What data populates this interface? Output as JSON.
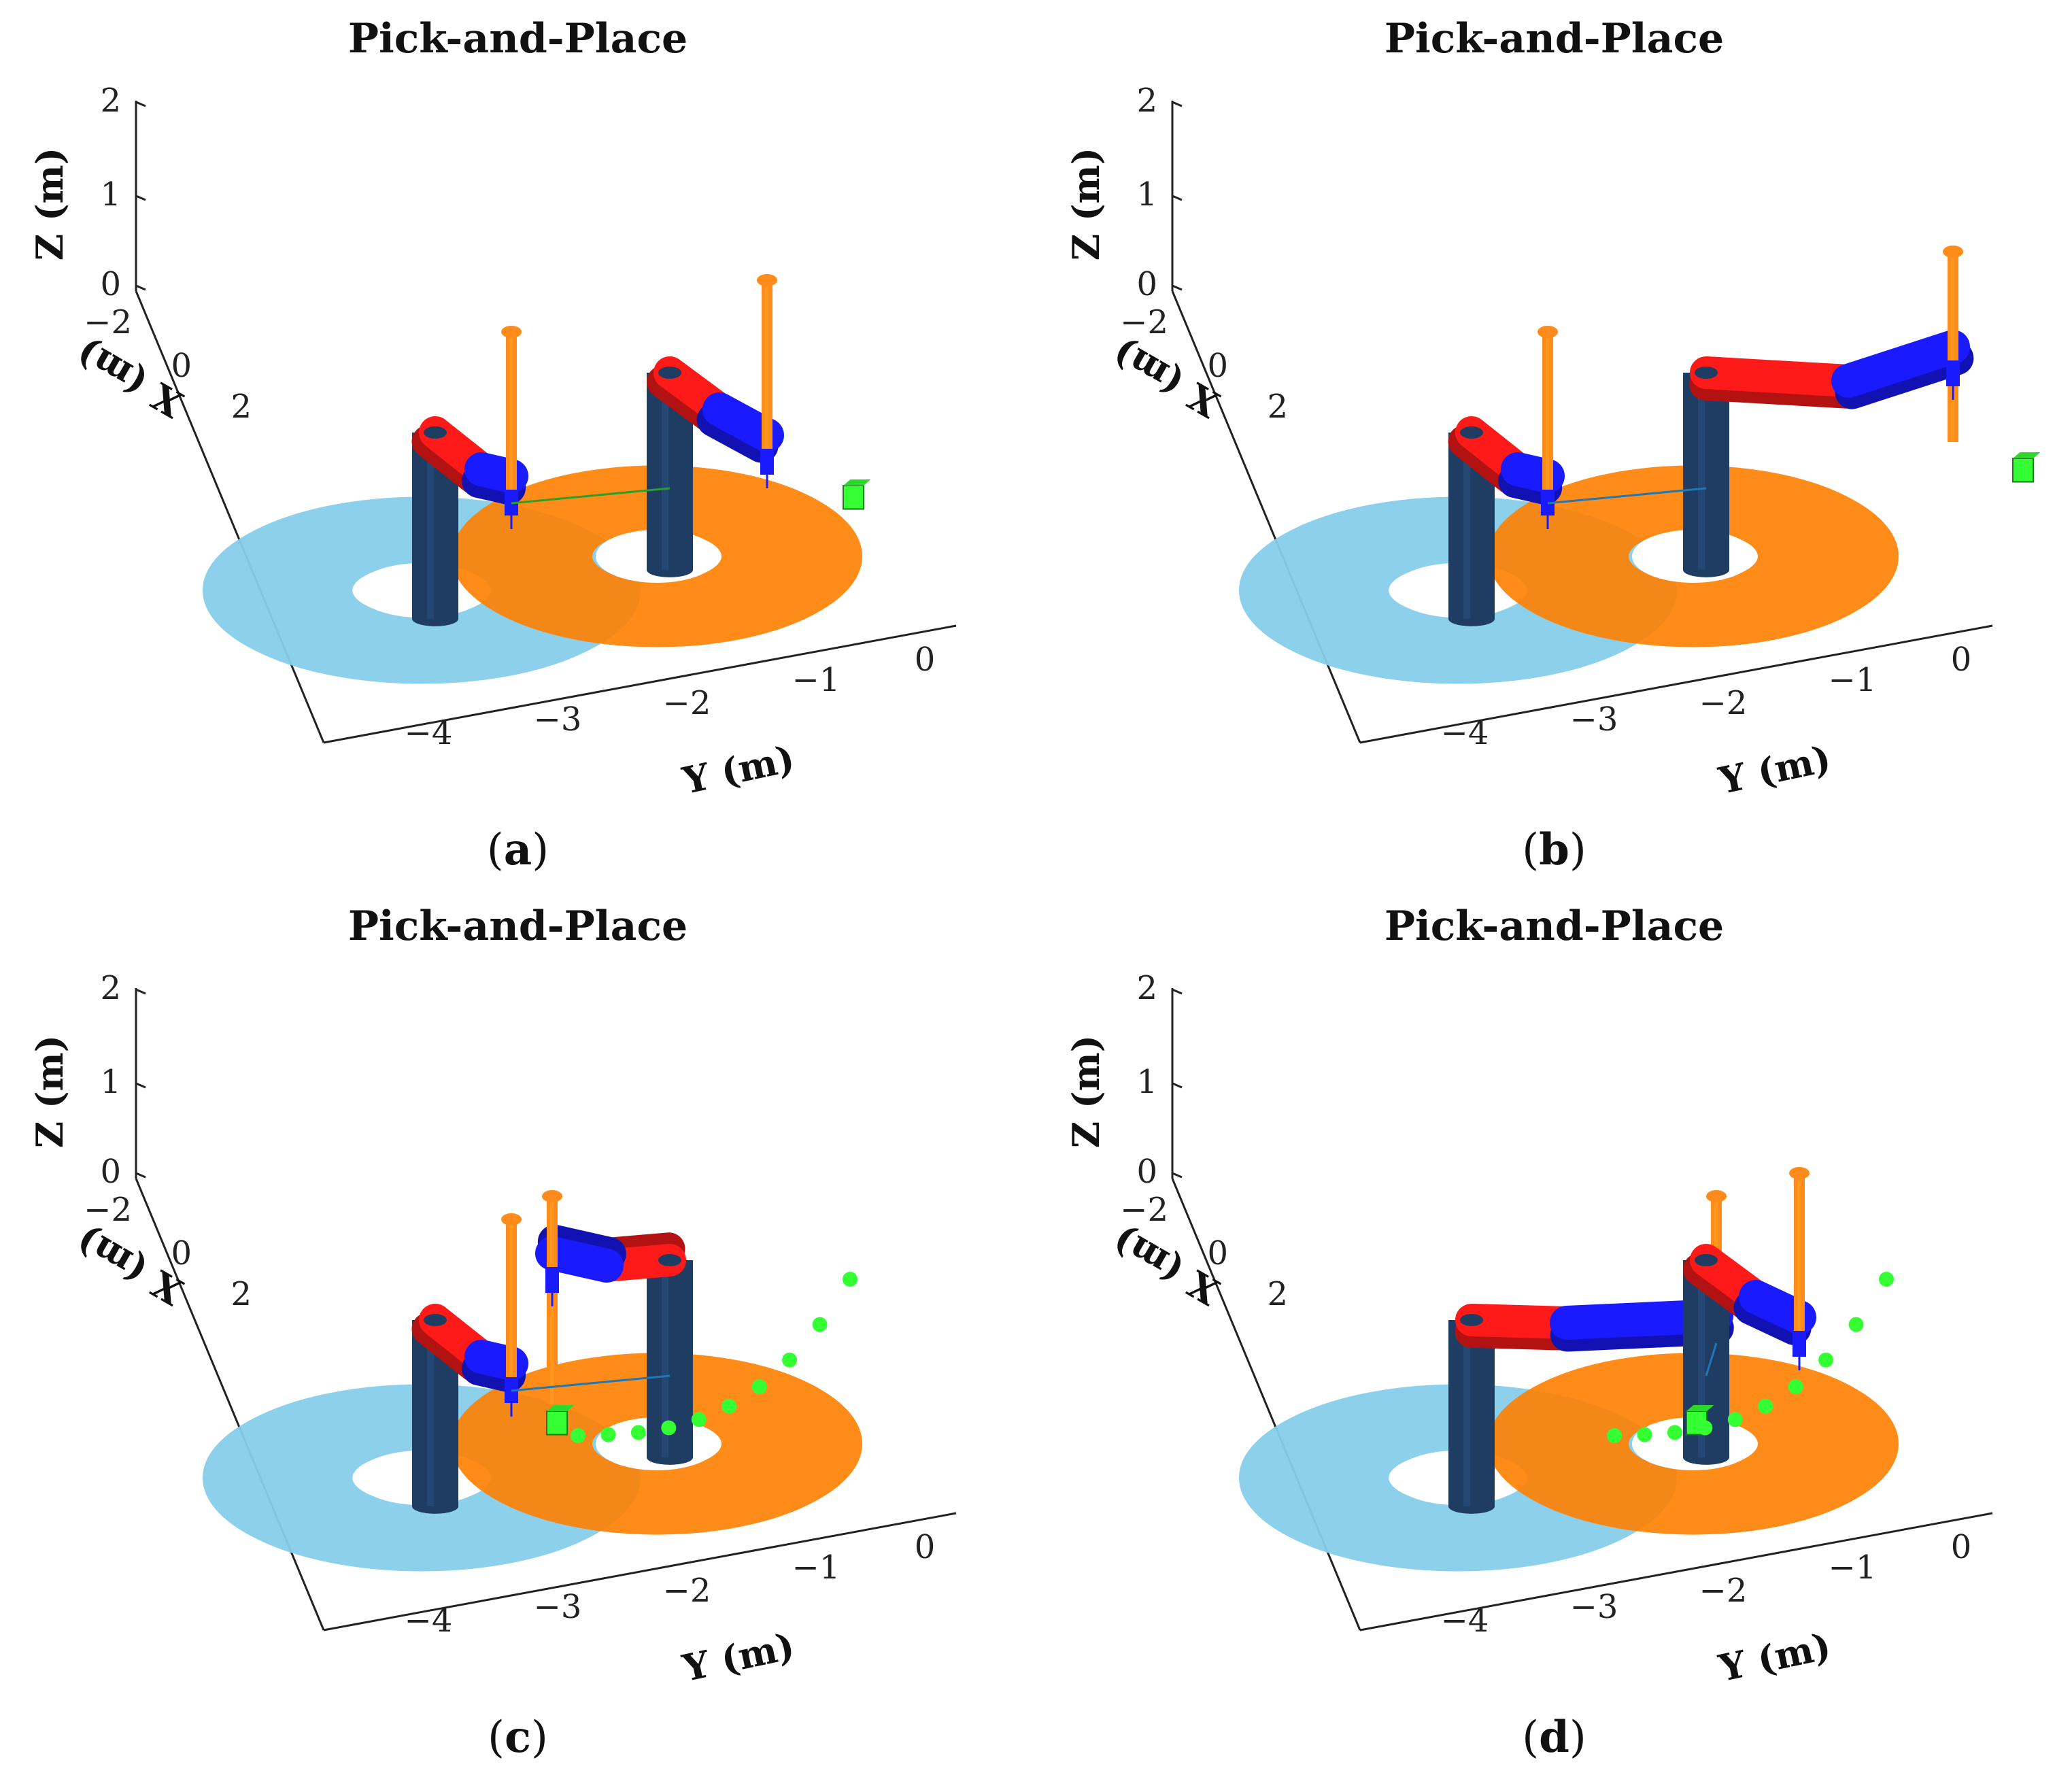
{
  "colors": {
    "column": "#1f3d63",
    "arm1": "#ff1a1a",
    "arm2": "#1a1aff",
    "shaft": "#ff8c1a",
    "workspace_left": "#87ceeb",
    "workspace_right": "#ff8000",
    "part": "#33ff33",
    "axis": "#222222"
  },
  "chart_data": [
    {
      "id": "a",
      "type": "3d-scene",
      "title": "Pick-and-Place",
      "caption_letter": "a",
      "xlabel": "X (m)",
      "ylabel": "Y (m)",
      "zlabel": "Z (m)",
      "xticks": [
        "−2",
        "0",
        "2"
      ],
      "yticks": [
        "−4",
        "−3",
        "−2",
        "−1",
        "0"
      ],
      "zticks": [
        "0",
        "1",
        "2"
      ],
      "zlim": [
        0,
        2
      ],
      "trajectory_points": 0
    },
    {
      "id": "b",
      "type": "3d-scene",
      "title": "Pick-and-Place",
      "caption_letter": "b",
      "xlabel": "X (m)",
      "ylabel": "Y (m)",
      "zlabel": "Z (m)",
      "xticks": [
        "−2",
        "0",
        "2"
      ],
      "yticks": [
        "−4",
        "−3",
        "−2",
        "−1",
        "0"
      ],
      "zticks": [
        "0",
        "1",
        "2"
      ],
      "zlim": [
        0,
        2
      ],
      "trajectory_points": 0
    },
    {
      "id": "c",
      "type": "3d-scene",
      "title": "Pick-and-Place",
      "caption_letter": "c",
      "xlabel": "X (m)",
      "ylabel": "Y (m)",
      "zlabel": "Z (m)",
      "xticks": [
        "−2",
        "0",
        "2"
      ],
      "yticks": [
        "−4",
        "−3",
        "−2",
        "−1",
        "0"
      ],
      "zticks": [
        "0",
        "1",
        "2"
      ],
      "zlim": [
        0,
        2
      ],
      "trajectory_points": 10
    },
    {
      "id": "d",
      "type": "3d-scene",
      "title": "Pick-and-Place",
      "caption_letter": "d",
      "xlabel": "X (m)",
      "ylabel": "Y (m)",
      "zlabel": "Z (m)",
      "xticks": [
        "−2",
        "0",
        "2"
      ],
      "yticks": [
        "−4",
        "−3",
        "−2",
        "−1",
        "0"
      ],
      "zticks": [
        "0",
        "1",
        "2"
      ],
      "zlim": [
        0,
        2
      ],
      "trajectory_points": 10
    }
  ]
}
